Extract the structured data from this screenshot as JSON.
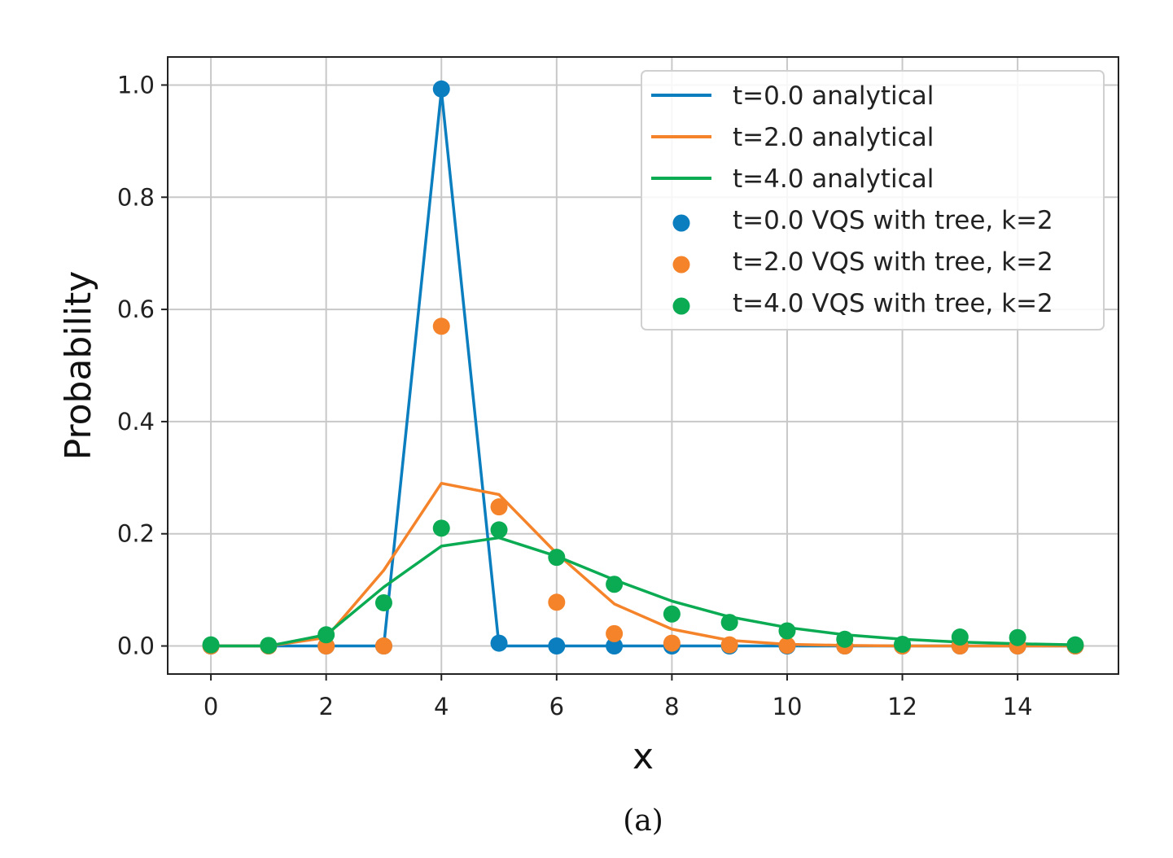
{
  "chart_data": {
    "type": "line",
    "xlabel": "x",
    "ylabel": "Probability",
    "caption": "(a)",
    "xlim": [
      -0.75,
      15.75
    ],
    "ylim": [
      -0.05,
      1.05
    ],
    "xticks": [
      0,
      2,
      4,
      6,
      8,
      10,
      12,
      14
    ],
    "yticks": [
      0.0,
      0.2,
      0.4,
      0.6,
      0.8,
      1.0
    ],
    "xtick_labels": [
      "0",
      "2",
      "4",
      "6",
      "8",
      "10",
      "12",
      "14"
    ],
    "ytick_labels": [
      "0.0",
      "0.2",
      "0.4",
      "0.6",
      "0.8",
      "1.0"
    ],
    "grid": true,
    "legend_position": "top-right",
    "x": [
      0,
      1,
      2,
      3,
      4,
      5,
      6,
      7,
      8,
      9,
      10,
      11,
      12,
      13,
      14,
      15
    ],
    "series": [
      {
        "name": "t=0.0 analytical",
        "kind": "line",
        "color": "#0a7ebf",
        "values": [
          0,
          0,
          0,
          0,
          0.99,
          0,
          0,
          0,
          0,
          0,
          0,
          0,
          0,
          0,
          0,
          0
        ]
      },
      {
        "name": "t=2.0 analytical",
        "kind": "line",
        "color": "#f5832a",
        "values": [
          0,
          0,
          0.015,
          0.135,
          0.29,
          0.27,
          0.165,
          0.075,
          0.03,
          0.01,
          0.003,
          0.001,
          0,
          0,
          0,
          0
        ]
      },
      {
        "name": "t=4.0 analytical",
        "kind": "line",
        "color": "#0aab52",
        "values": [
          0,
          0,
          0.02,
          0.105,
          0.178,
          0.193,
          0.16,
          0.118,
          0.08,
          0.052,
          0.033,
          0.02,
          0.012,
          0.007,
          0.004,
          0.002
        ]
      },
      {
        "name": "t=0.0 VQS with tree, k=2",
        "kind": "scatter",
        "color": "#0a7ebf",
        "values": [
          0,
          0,
          0,
          0,
          0.993,
          0.005,
          0,
          0,
          0,
          0,
          0,
          0,
          0,
          0,
          0,
          0
        ]
      },
      {
        "name": "t=2.0 VQS with tree, k=2",
        "kind": "scatter",
        "color": "#f5832a",
        "values": [
          0,
          0,
          0,
          0,
          0.57,
          0.248,
          0.078,
          0.022,
          0.005,
          0.002,
          0.001,
          0,
          0,
          0,
          0,
          0
        ]
      },
      {
        "name": "t=4.0 VQS with tree, k=2",
        "kind": "scatter",
        "color": "#0aab52",
        "values": [
          0.002,
          0.001,
          0.02,
          0.077,
          0.21,
          0.207,
          0.158,
          0.11,
          0.057,
          0.042,
          0.027,
          0.012,
          0.003,
          0.016,
          0.015,
          0.002
        ]
      }
    ]
  }
}
